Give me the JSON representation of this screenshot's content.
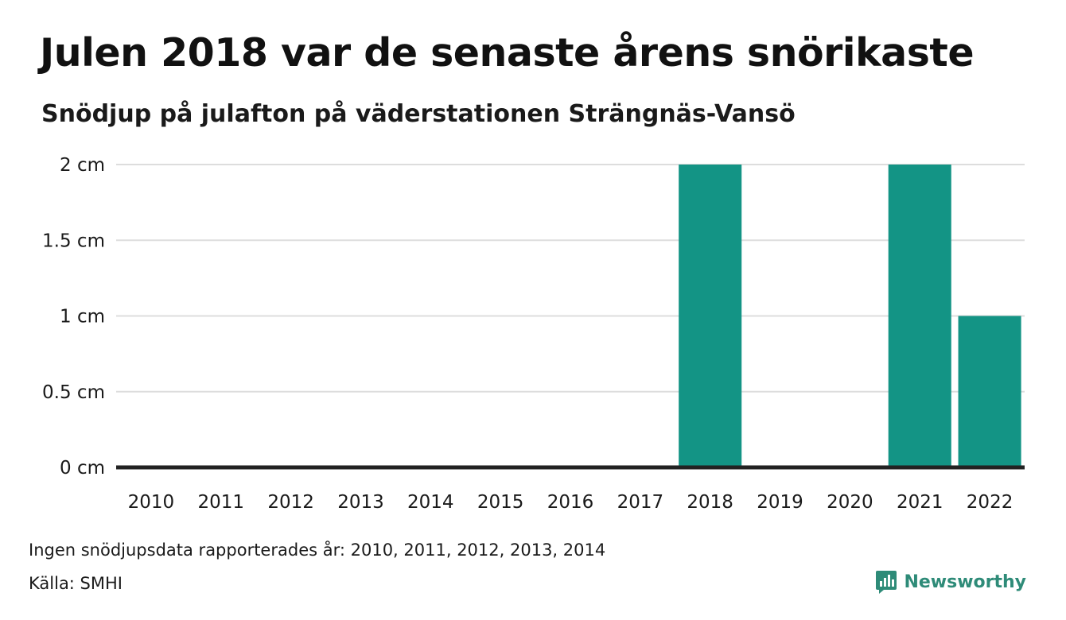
{
  "title": "Julen 2018 var de senaste årens snörikaste",
  "subtitle": "Snödjup på julafton på väderstationen Strängnäs-Vansö",
  "footer": {
    "note": "Ingen snödjupsdata rapporterades år: 2010, 2011, 2012, 2013, 2014",
    "source": "Källa: SMHI",
    "brand": "Newsworthy"
  },
  "colors": {
    "bar": "#139485",
    "grid": "#dddddd",
    "baseline": "#222222",
    "brand": "#2e8b78"
  },
  "chart_data": {
    "type": "bar",
    "categories": [
      "2010",
      "2011",
      "2012",
      "2013",
      "2014",
      "2015",
      "2016",
      "2017",
      "2018",
      "2019",
      "2020",
      "2021",
      "2022"
    ],
    "values": [
      0,
      0,
      0,
      0,
      0,
      0,
      0,
      0,
      2,
      0,
      0,
      2,
      1
    ],
    "unit": "cm",
    "ylim": [
      0,
      2
    ],
    "yticks": [
      0,
      0.5,
      1,
      1.5,
      2
    ],
    "ytick_labels": [
      "0 cm",
      "0.5 cm",
      "1 cm",
      "1.5 cm",
      "2 cm"
    ],
    "grid": true
  }
}
